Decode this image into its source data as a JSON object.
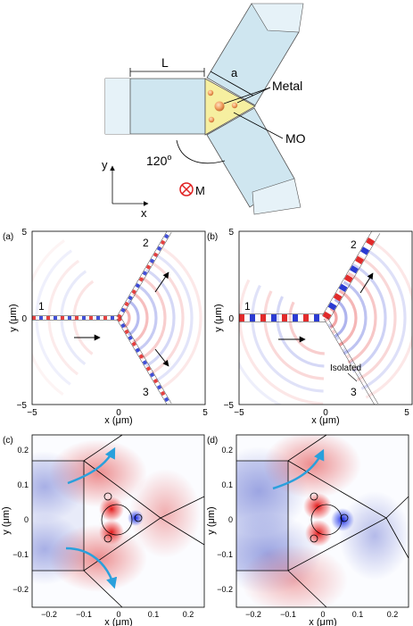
{
  "schematic": {
    "label_L": "L",
    "label_a": "a",
    "label_metal": "Metal",
    "label_mo": "MO",
    "label_angle": "120",
    "label_angle_sup": "o",
    "axis_y": "y",
    "axis_x": "x",
    "label_M": "M"
  },
  "panels": {
    "a": {
      "tag": "(a)",
      "port1": "1",
      "port2": "2",
      "port3": "3"
    },
    "b": {
      "tag": "(b)",
      "port1": "1",
      "port2": "2",
      "port3": "3",
      "isolated": "Isolated"
    },
    "c": {
      "tag": "(c)"
    },
    "d": {
      "tag": "(d)"
    }
  },
  "axes_top": {
    "xlabel": "x (μm)",
    "ylabel": "y (μm)",
    "xticks": [
      "−5",
      "0",
      "5"
    ],
    "yticks": [
      "5",
      "0",
      "−5"
    ]
  },
  "axes_bottom": {
    "xlabel": "x (μm)",
    "ylabel": "y (μm)",
    "xticks": [
      "−0.2",
      "−0.1",
      "0",
      "0.1",
      "0.2"
    ],
    "yticks": [
      "0.2",
      "0.1",
      "0",
      "−0.1",
      "−0.2"
    ]
  },
  "colors": {
    "waveguide": "#cfe6f0",
    "junction": "#f6efa0",
    "red": "#e02020",
    "blue": "#2030d0",
    "arrow": "#2aa0dc"
  }
}
